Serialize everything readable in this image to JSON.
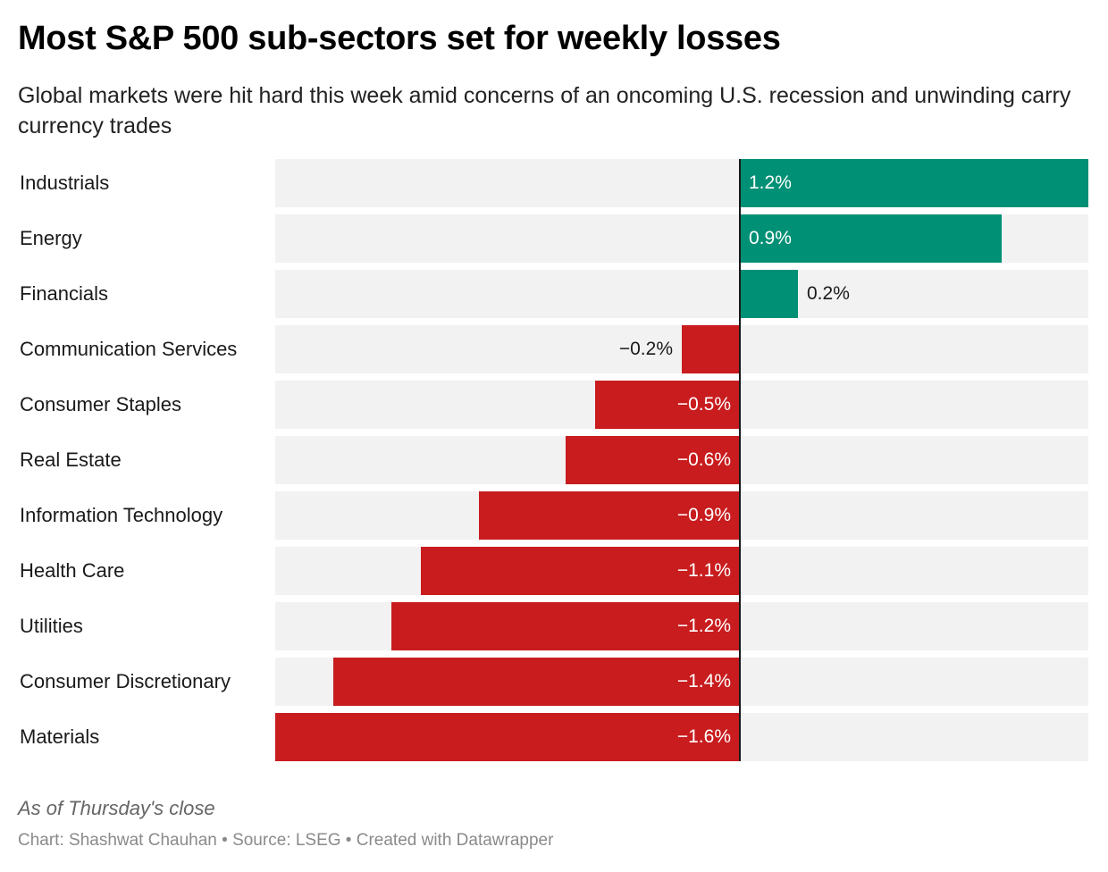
{
  "header": {
    "title": "Most S&P 500 sub-sectors set for weekly losses",
    "subtitle": "Global markets were hit hard this week amid concerns of an oncoming U.S. recession and unwinding carry currency trades"
  },
  "footer": {
    "notes": "As of Thursday's close",
    "byline": "Chart: Shashwat Chauhan • Source: LSEG • Created with Datawrapper"
  },
  "colors": {
    "positive": "#009075",
    "negative": "#c81c1e",
    "background_bar": "#f2f2f2",
    "zero_line": "#1a1a1a"
  },
  "chart_data": {
    "type": "bar",
    "orientation": "horizontal",
    "title": "Most S&P 500 sub-sectors set for weekly losses",
    "subtitle": "Global markets were hit hard this week amid concerns of an oncoming U.S. recession and unwinding carry currency trades",
    "xlabel": "",
    "ylabel": "",
    "unit": "%",
    "xlim": [
      -1.6,
      1.2
    ],
    "grid": false,
    "legend": "none",
    "categories": [
      "Industrials",
      "Energy",
      "Financials",
      "Communication Services",
      "Consumer Staples",
      "Real Estate",
      "Information Technology",
      "Health Care",
      "Utilities",
      "Consumer Discretionary",
      "Materials"
    ],
    "values": [
      1.2,
      0.9,
      0.2,
      -0.2,
      -0.5,
      -0.6,
      -0.9,
      -1.1,
      -1.2,
      -1.4,
      -1.6
    ],
    "labels": [
      "1.2%",
      "0.9%",
      "0.2%",
      "−0.2%",
      "−0.5%",
      "−0.6%",
      "−0.9%",
      "−1.1%",
      "−1.2%",
      "−1.4%",
      "−1.6%"
    ],
    "notes": "As of Thursday's close",
    "source": "Chart: Shashwat Chauhan • Source: LSEG • Created with Datawrapper"
  }
}
